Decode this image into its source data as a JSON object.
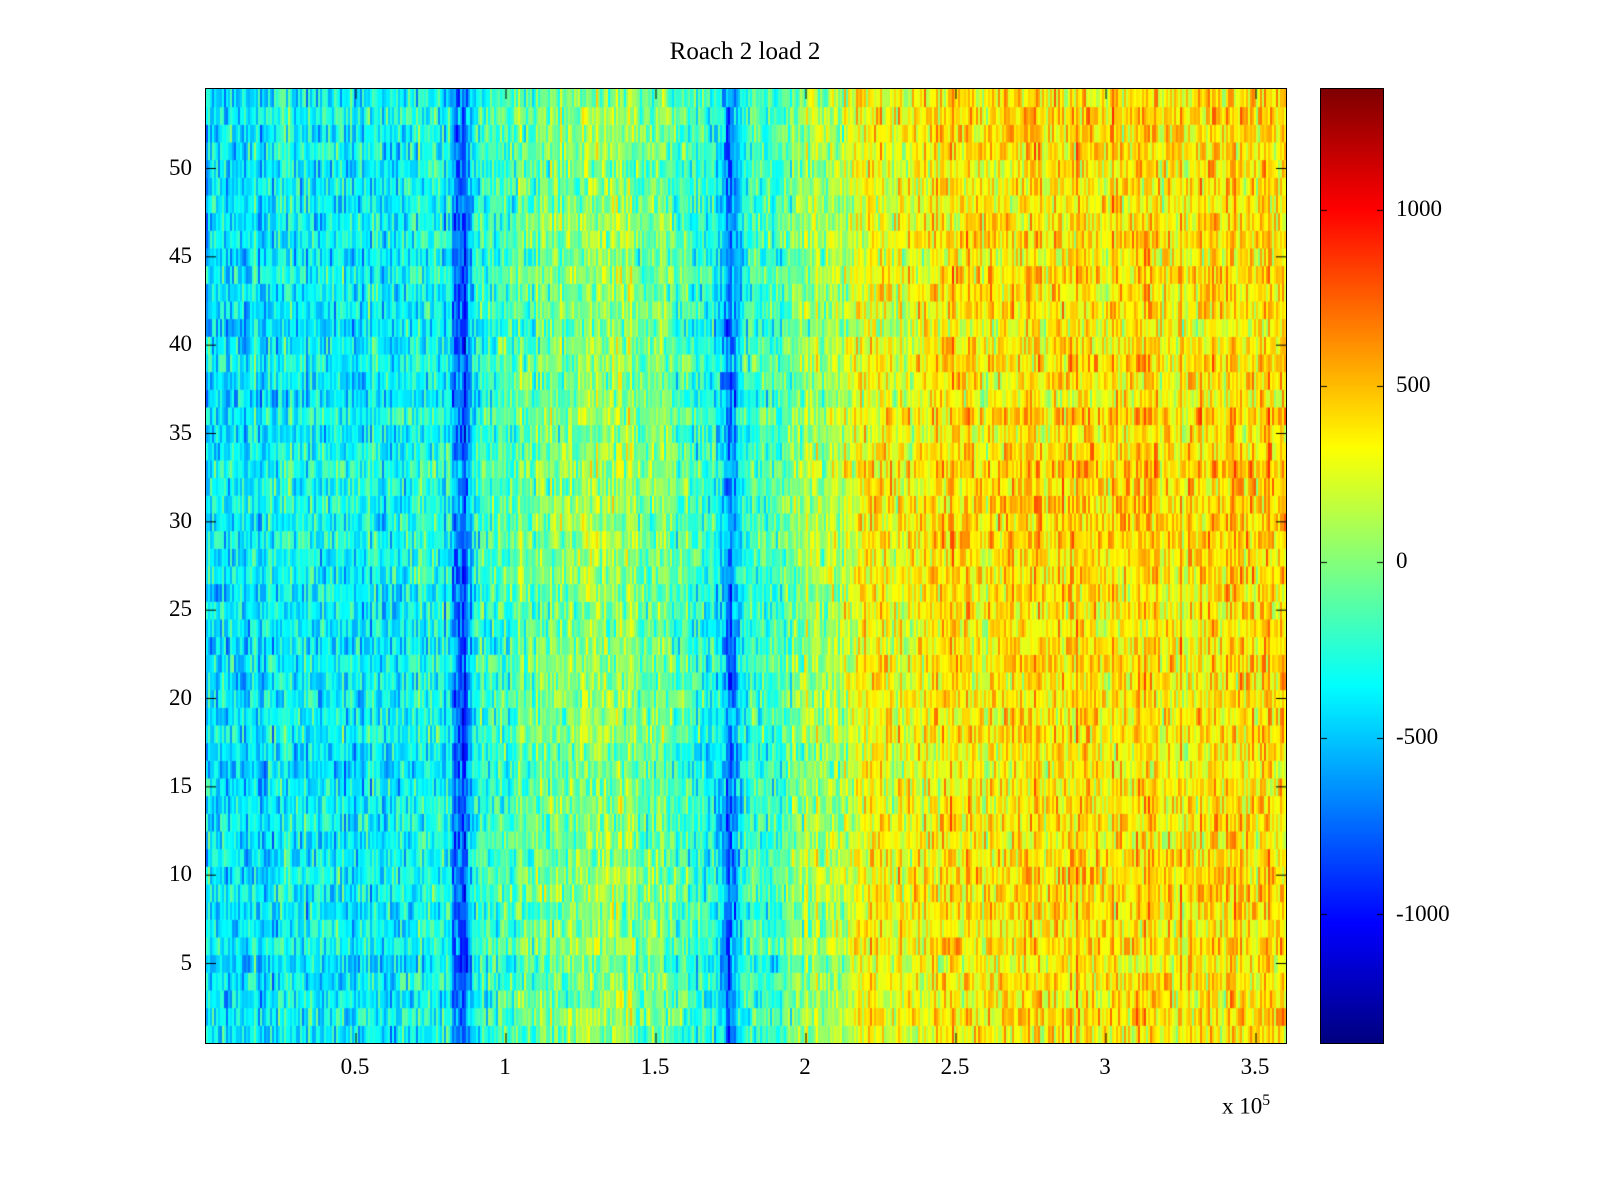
{
  "title": "Roach 2 load 2",
  "chart_data": {
    "type": "heatmap",
    "title": "Roach 2 load 2",
    "colormap": "jet",
    "x_axis": {
      "range": [
        0,
        360000
      ],
      "tick_values": [
        50000,
        100000,
        150000,
        200000,
        250000,
        300000,
        350000
      ],
      "tick_labels": [
        "0.5",
        "1",
        "1.5",
        "2",
        "2.5",
        "3",
        "3.5"
      ],
      "multiplier_base": "x 10",
      "multiplier_exp": "5"
    },
    "y_axis": {
      "range": [
        0.5,
        54.5
      ],
      "tick_values": [
        5,
        10,
        15,
        20,
        25,
        30,
        35,
        40,
        45,
        50
      ],
      "tick_labels": [
        "5",
        "10",
        "15",
        "20",
        "25",
        "30",
        "35",
        "40",
        "45",
        "50"
      ]
    },
    "colorbar": {
      "clim": [
        -1365,
        1345
      ],
      "tick_values": [
        1000,
        500,
        0,
        -500,
        -1000
      ],
      "tick_labels": [
        "1000",
        "500",
        "0",
        "-500",
        "-1000"
      ]
    },
    "grid": {
      "rows": 54,
      "cols": 540
    },
    "generation": {
      "seed": 1337,
      "noise_amplitude": 380,
      "column_offset_amplitude": 180,
      "row_offset_amplitude": 90,
      "trend": {
        "f": [
          0.0,
          0.08,
          0.16,
          0.24,
          0.3,
          0.36,
          0.42,
          0.47,
          0.52,
          0.56,
          0.62,
          0.72,
          1.0
        ],
        "value": [
          -380,
          -330,
          -360,
          -280,
          -60,
          60,
          -40,
          -300,
          -180,
          60,
          280,
          380,
          430
        ]
      },
      "dark_bands": [
        {
          "center_f": 0.236,
          "sigma_f": 0.009,
          "depth": -520
        },
        {
          "center_f": 0.486,
          "sigma_f": 0.008,
          "depth": -480
        }
      ]
    }
  }
}
